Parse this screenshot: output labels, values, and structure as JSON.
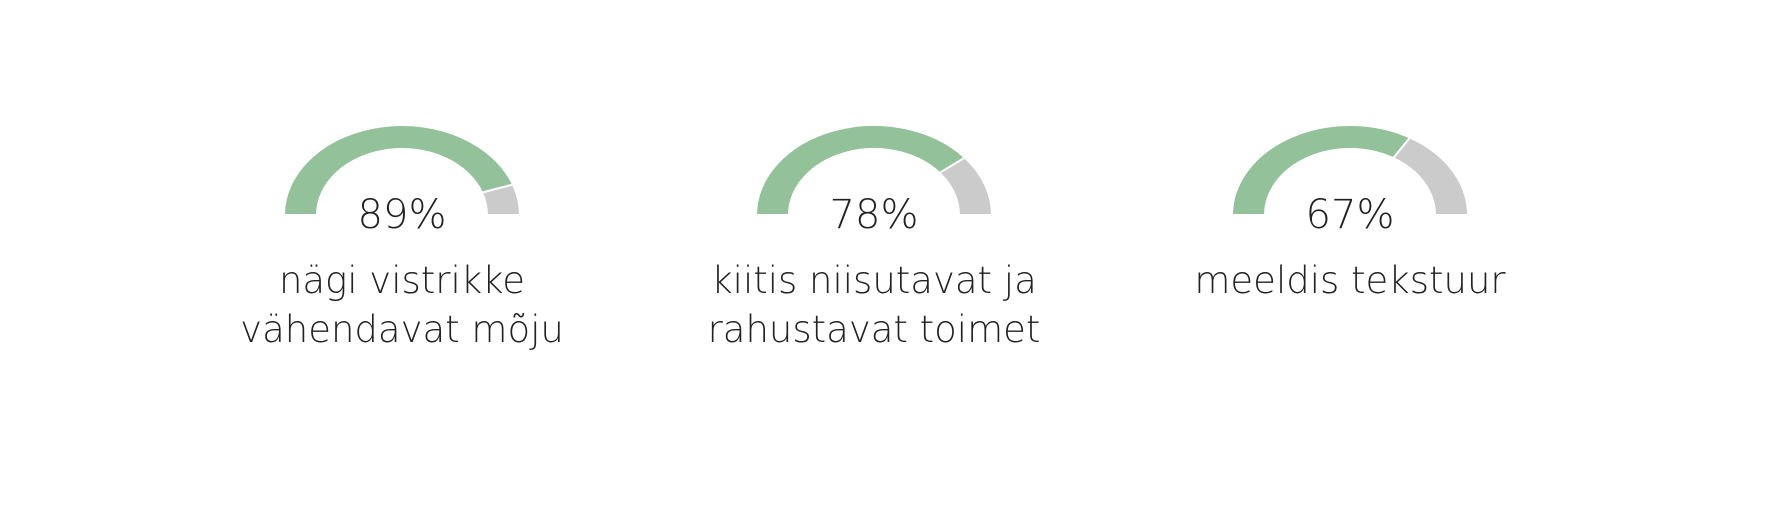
{
  "chart_data": {
    "type": "gauge",
    "range": [
      0,
      100
    ],
    "colors": {
      "filled": "#93c29a",
      "remaining": "#cbcbcb"
    },
    "gauges": [
      {
        "value": 89,
        "value_label": "89%",
        "label_lines": [
          "nägi vistrikke",
          "vähendavat mõju"
        ]
      },
      {
        "value": 78,
        "value_label": "78%",
        "label_lines": [
          "kiitis niisutavat ja",
          "rahustavat toimet"
        ]
      },
      {
        "value": 67,
        "value_label": "67%",
        "label_lines": [
          "meeldis tekstuur"
        ]
      }
    ]
  }
}
